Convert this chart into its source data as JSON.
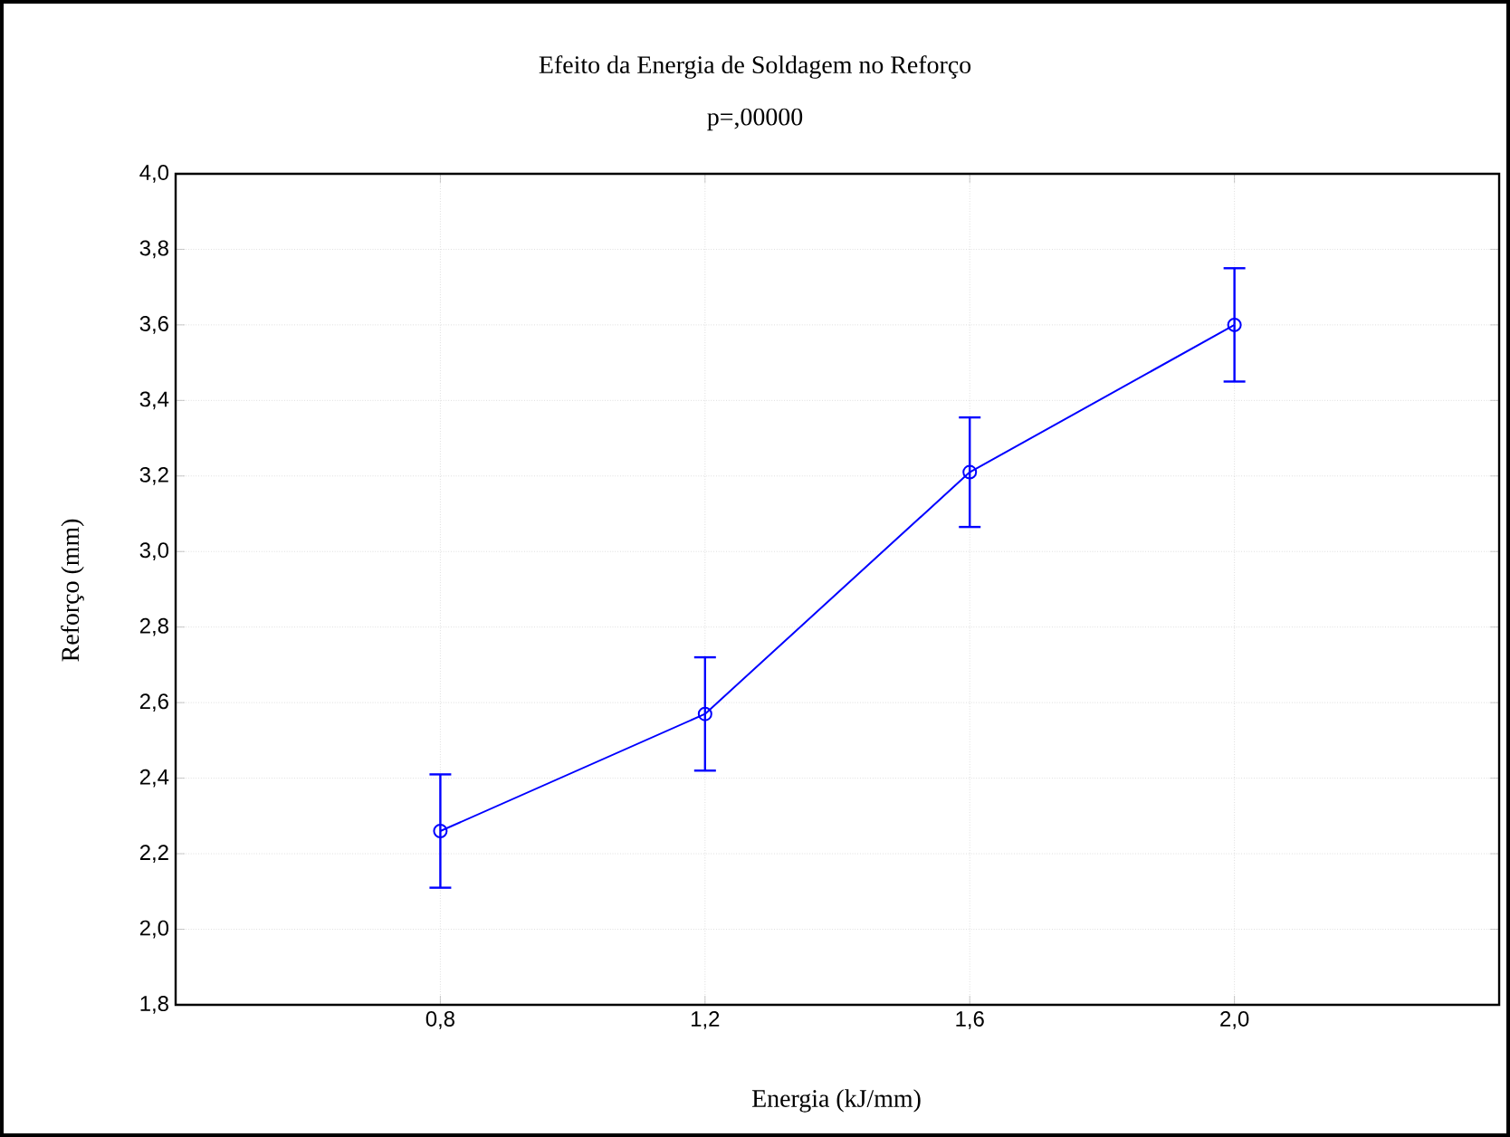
{
  "chart_data": {
    "type": "line",
    "title": "Efeito da Energia de Soldagem no Reforço",
    "subtitle": "p=,00000",
    "xlabel": "Energia (kJ/mm)",
    "ylabel": "Reforço (mm)",
    "x": [
      0.8,
      1.2,
      1.6,
      2.0
    ],
    "series": [
      {
        "color": "#0000ff",
        "values": [
          2.26,
          2.57,
          3.21,
          3.6
        ],
        "errors": [
          0.15,
          0.15,
          0.145,
          0.15
        ]
      }
    ],
    "xlim": [
      0.4,
      2.4
    ],
    "xticks": [
      {
        "value": 0.8,
        "label": "0,8"
      },
      {
        "value": 1.2,
        "label": "1,2"
      },
      {
        "value": 1.6,
        "label": "1,6"
      },
      {
        "value": 2.0,
        "label": "2,0"
      }
    ],
    "ylim": [
      1.8,
      4.0
    ],
    "yticks": [
      {
        "value": 1.8,
        "label": "1,8"
      },
      {
        "value": 2.0,
        "label": "2,0"
      },
      {
        "value": 2.2,
        "label": "2,2"
      },
      {
        "value": 2.4,
        "label": "2,4"
      },
      {
        "value": 2.6,
        "label": "2,6"
      },
      {
        "value": 2.8,
        "label": "2,8"
      },
      {
        "value": 3.0,
        "label": "3,0"
      },
      {
        "value": 3.2,
        "label": "3,2"
      },
      {
        "value": 3.4,
        "label": "3,4"
      },
      {
        "value": 3.6,
        "label": "3,6"
      },
      {
        "value": 3.8,
        "label": "3,8"
      },
      {
        "value": 4.0,
        "label": "4,0"
      }
    ],
    "grid": true,
    "marker": "circle",
    "line_style": "solid"
  }
}
